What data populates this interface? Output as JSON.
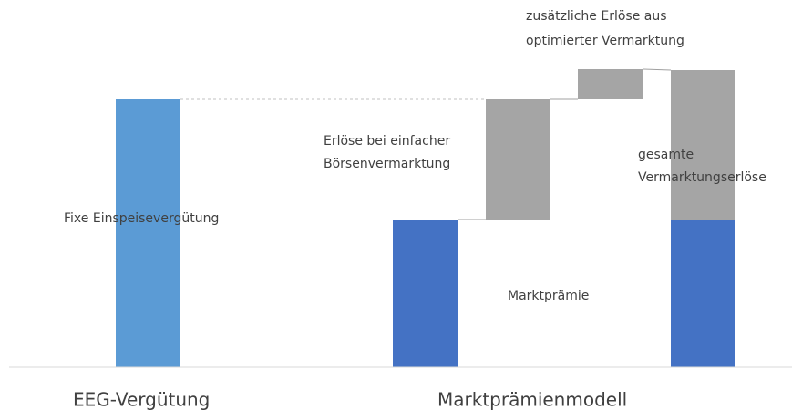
{
  "labels": {
    "fixed": "Fixe Einspeisevergütung",
    "simple": [
      "Erlöse bei einfacher",
      "Börsenvermarktung"
    ],
    "additional": [
      "zusätzliche Erlöse aus",
      "optimierter Vermarktung"
    ],
    "total": [
      "gesamte",
      "Vermarktungserlöse"
    ],
    "premium": "Marktprämie"
  },
  "groups": [
    "EEG-Vergütung",
    "Marktprämienmodell"
  ]
}
